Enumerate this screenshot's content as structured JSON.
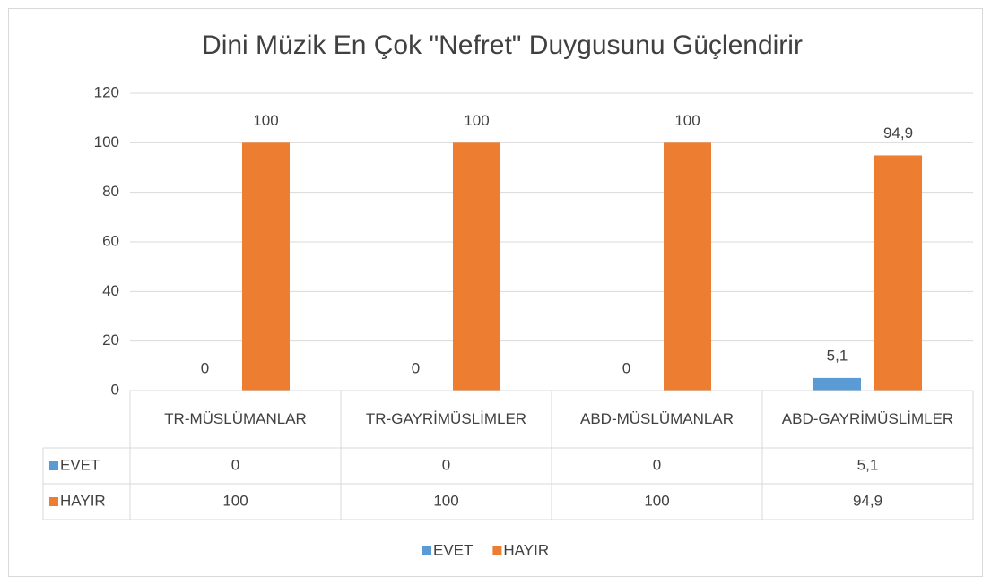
{
  "chart_data": {
    "type": "bar",
    "title": "Dini Müzik En Çok \"Nefret\" Duygusunu Güçlendirir",
    "categories": [
      "TR-MÜSLÜMANLAR",
      "TR-GAYRİMÜSLİMLER",
      "ABD-MÜSLÜMANLAR",
      "ABD-GAYRİMÜSLİMLER"
    ],
    "series": [
      {
        "name": "EVET",
        "color": "#5b9bd5",
        "values": [
          0,
          0,
          0,
          5.1
        ],
        "value_labels": [
          "0",
          "0",
          "0",
          "5,1"
        ]
      },
      {
        "name": "HAYIR",
        "color": "#ed7d31",
        "values": [
          100,
          100,
          100,
          94.9
        ],
        "value_labels": [
          "100",
          "100",
          "100",
          "94,9"
        ]
      }
    ],
    "ylim": [
      0,
      120
    ],
    "yticks": [
      0,
      20,
      40,
      60,
      80,
      100,
      120
    ],
    "grid": true,
    "legend": "bottom",
    "data_table": true
  }
}
